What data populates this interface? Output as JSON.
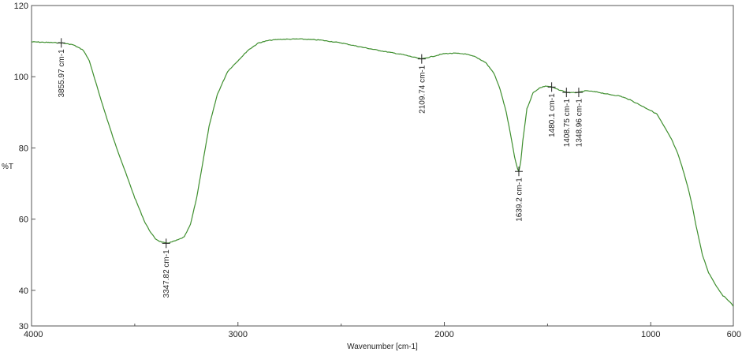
{
  "chart_data": {
    "type": "line",
    "xlabel": "Wavenumber [cm-1]",
    "ylabel": "%T",
    "xlim": [
      4000,
      600
    ],
    "ylim": [
      30,
      120
    ],
    "x_reversed": true,
    "grid": false,
    "line_color": "#3f8f2f",
    "x_ticks": [
      {
        "value": 4000,
        "label": "4000"
      },
      {
        "value": 3000,
        "label": "3000"
      },
      {
        "value": 2000,
        "label": "2000"
      },
      {
        "value": 1000,
        "label": "1000"
      },
      {
        "value": 600,
        "label": "600"
      }
    ],
    "y_ticks": [
      {
        "value": 30,
        "label": "30"
      },
      {
        "value": 40,
        "label": "40"
      },
      {
        "value": 60,
        "label": "60"
      },
      {
        "value": 80,
        "label": "80"
      },
      {
        "value": 100,
        "label": "100"
      },
      {
        "value": 120,
        "label": "120"
      }
    ],
    "series": [
      {
        "x": [
          4000,
          3950,
          3900,
          3855.97,
          3800,
          3750,
          3720,
          3700,
          3650,
          3600,
          3550,
          3500,
          3450,
          3420,
          3400,
          3380,
          3347.82,
          3320,
          3290,
          3260,
          3230,
          3200,
          3170,
          3140,
          3100,
          3050,
          3000,
          2950,
          2900,
          2850,
          2800,
          2700,
          2600,
          2500,
          2400,
          2300,
          2200,
          2150,
          2109.74,
          2050,
          2000,
          1950,
          1900,
          1850,
          1800,
          1760,
          1730,
          1700,
          1680,
          1660,
          1645,
          1639.2,
          1630,
          1620,
          1600,
          1570,
          1540,
          1510,
          1480.1,
          1450,
          1420,
          1408.75,
          1380,
          1348.96,
          1320,
          1300,
          1250,
          1200,
          1150,
          1100,
          1050,
          1000,
          970,
          940,
          900,
          870,
          850,
          820,
          800,
          780,
          750,
          720,
          700,
          680,
          650,
          620,
          600
        ],
        "y": [
          109.8,
          109.7,
          109.6,
          109.5,
          109.0,
          107.5,
          104.5,
          100.5,
          91.0,
          82.0,
          74.0,
          66.0,
          59.0,
          56.0,
          54.5,
          53.8,
          53.2,
          53.6,
          54.2,
          55.0,
          58.5,
          66.0,
          76.0,
          86.0,
          95.0,
          101.5,
          104.5,
          107.5,
          109.5,
          110.2,
          110.5,
          110.6,
          110.3,
          109.5,
          108.3,
          107.2,
          106.2,
          105.5,
          105.0,
          105.8,
          106.5,
          106.6,
          106.4,
          105.6,
          104.0,
          101.0,
          96.5,
          90.0,
          84.0,
          77.5,
          74.0,
          73.4,
          76.0,
          82.0,
          91.0,
          95.5,
          96.8,
          97.4,
          97.1,
          96.4,
          95.9,
          95.6,
          95.5,
          95.6,
          96.0,
          96.0,
          95.6,
          95.0,
          94.6,
          93.5,
          92.0,
          90.5,
          89.5,
          86.5,
          82.5,
          78.5,
          75.0,
          69.0,
          64.0,
          58.0,
          50.0,
          45.0,
          43.0,
          41.0,
          38.5,
          37.0,
          35.5
        ]
      }
    ],
    "annotations": [
      {
        "x": 3855.97,
        "y": 109.5,
        "label": "3855.97 cm-1"
      },
      {
        "x": 3347.82,
        "y": 53.2,
        "label": "3347.82 cm-1"
      },
      {
        "x": 2109.74,
        "y": 105.0,
        "label": "2109.74 cm-1"
      },
      {
        "x": 1639.2,
        "y": 73.4,
        "label": "1639.2 cm-1"
      },
      {
        "x": 1480.1,
        "y": 97.1,
        "label": "1480.1 cm-1"
      },
      {
        "x": 1408.75,
        "y": 95.6,
        "label": "1408.75 cm-1"
      },
      {
        "x": 1348.96,
        "y": 95.6,
        "label": "1348.96 cm-1"
      }
    ]
  }
}
